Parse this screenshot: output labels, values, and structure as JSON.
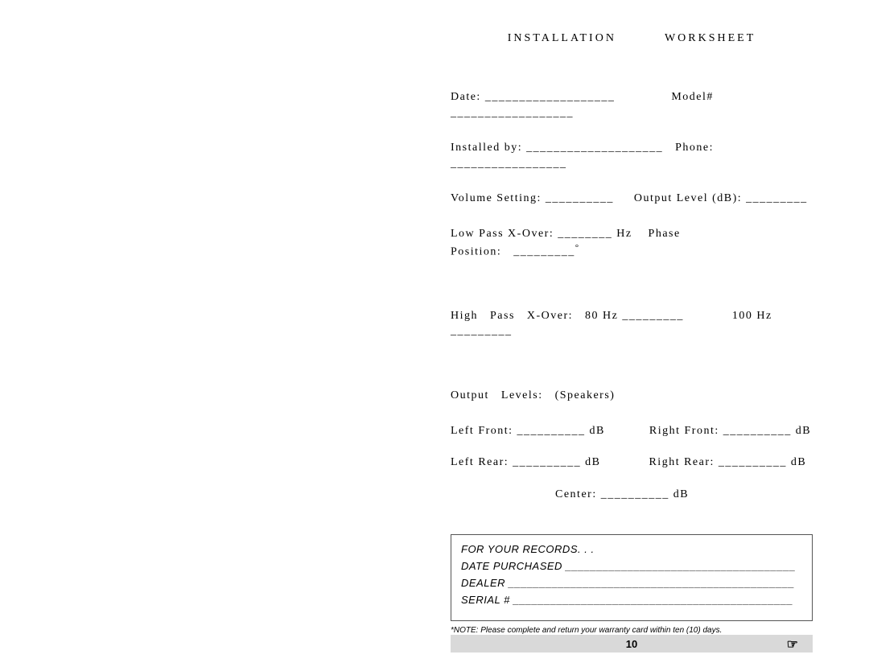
{
  "header": {
    "left": "INSTALLATION",
    "right": "WORKSHEET"
  },
  "rows": {
    "r1": "Date: ___________________              Model# __________________",
    "r2": "Installed by: ____________________   Phone: _________________",
    "r3": "Volume Setting: __________     Output Level (dB): _________",
    "r4_pre": "Low Pass X-Over: ________ Hz    Phase Position:   _________",
    "r4_deg": "°",
    "r5": "High   Pass   X-Over:   80 Hz _________            100 Hz _________",
    "r6": "Output   Levels:   (Speakers)",
    "r7": "Left Front: __________ dB           Right Front: __________ dB",
    "r8": "Left Rear: __________ dB            Right Rear: __________ dB",
    "r9": "                          Center: __________ dB"
  },
  "records": {
    "title": "FOR YOUR RECORDS. . .",
    "date_purchased": "DATE PURCHASED _____________________________________",
    "dealer": "DEALER ______________________________________________",
    "serial": "SERIAL # _____________________________________________"
  },
  "note": "*NOTE: Please complete and return your warranty card within ten (10) days.",
  "footer": {
    "page_number": "10",
    "hand": "☞"
  }
}
